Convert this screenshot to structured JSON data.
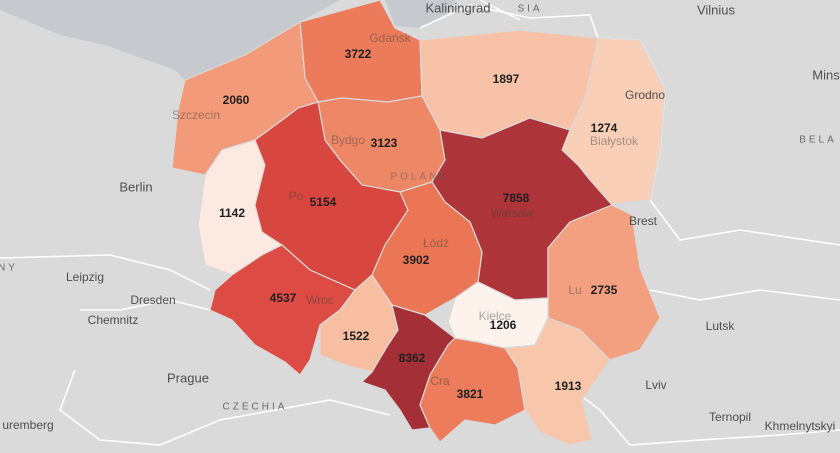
{
  "colors": {
    "background": "#dadada",
    "sea": "#c6c9ce",
    "scale_low": "#fbe9e2",
    "scale_high": "#a63238"
  },
  "countries": {
    "poland": "POLAND",
    "russia": "SIA",
    "czechia": "CZECHIA",
    "belarus": "BELA",
    "germany": "NY"
  },
  "places": {
    "kaliningrad": "Kaliningrad",
    "vilnius": "Vilnius",
    "minsk": "Mins",
    "grodno": "Grodno",
    "brest": "Brest",
    "berlin": "Berlin",
    "leipzig": "Leipzig",
    "dresden": "Dresden",
    "chemnitz": "Chemnitz",
    "prague": "Prague",
    "nuremberg": "uremberg",
    "lutsk": "Lutsk",
    "lviv": "Lviv",
    "ternopil": "Ternopil",
    "khmelnytskyi": "Khmelnytskyi",
    "gdansk": "Gdańsk",
    "szczecin": "Szczecin",
    "bydgoszcz": "Bydgo",
    "poznan": "Po",
    "lodz": "Łódź",
    "warsaw": "Warsaw",
    "bialystok": "Białystok",
    "wroclaw": "Wroc",
    "krakow": "Kraków",
    "kielce": "Kielce",
    "lublin": "Lu",
    "cracow_fragment": "Cra"
  },
  "regions": [
    {
      "id": "pomorskie",
      "value": 3722,
      "color": "#ec7b5c"
    },
    {
      "id": "warminsko-mazurskie",
      "value": 1897,
      "color": "#f7c2a7"
    },
    {
      "id": "zachodniopomorskie",
      "value": 2060,
      "color": "#f29a79"
    },
    {
      "id": "podlaskie",
      "value": 1274,
      "color": "#f9cfb8"
    },
    {
      "id": "kujawsko-pomorskie",
      "value": 3123,
      "color": "#ee8766"
    },
    {
      "id": "lubuskie",
      "value": 1142,
      "color": "#fbe9e2"
    },
    {
      "id": "wielkopolskie",
      "value": 5154,
      "color": "#d84640"
    },
    {
      "id": "mazowieckie",
      "value": 7858,
      "color": "#ad3539"
    },
    {
      "id": "lodzkie",
      "value": 3902,
      "color": "#eb7656"
    },
    {
      "id": "dolnoslaskie",
      "value": 4537,
      "color": "#dc4c44"
    },
    {
      "id": "lubelskie",
      "value": 2735,
      "color": "#f2a07f"
    },
    {
      "id": "opolskie",
      "value": 1522,
      "color": "#f7bea2"
    },
    {
      "id": "slaskie",
      "value": 8362,
      "color": "#a52f37"
    },
    {
      "id": "swietokrzyskie",
      "value": 1206,
      "color": "#fdf2ec"
    },
    {
      "id": "malopolskie",
      "value": 3821,
      "color": "#ec7c5c"
    },
    {
      "id": "podkarpackie",
      "value": 1913,
      "color": "#f8c6ab"
    }
  ]
}
